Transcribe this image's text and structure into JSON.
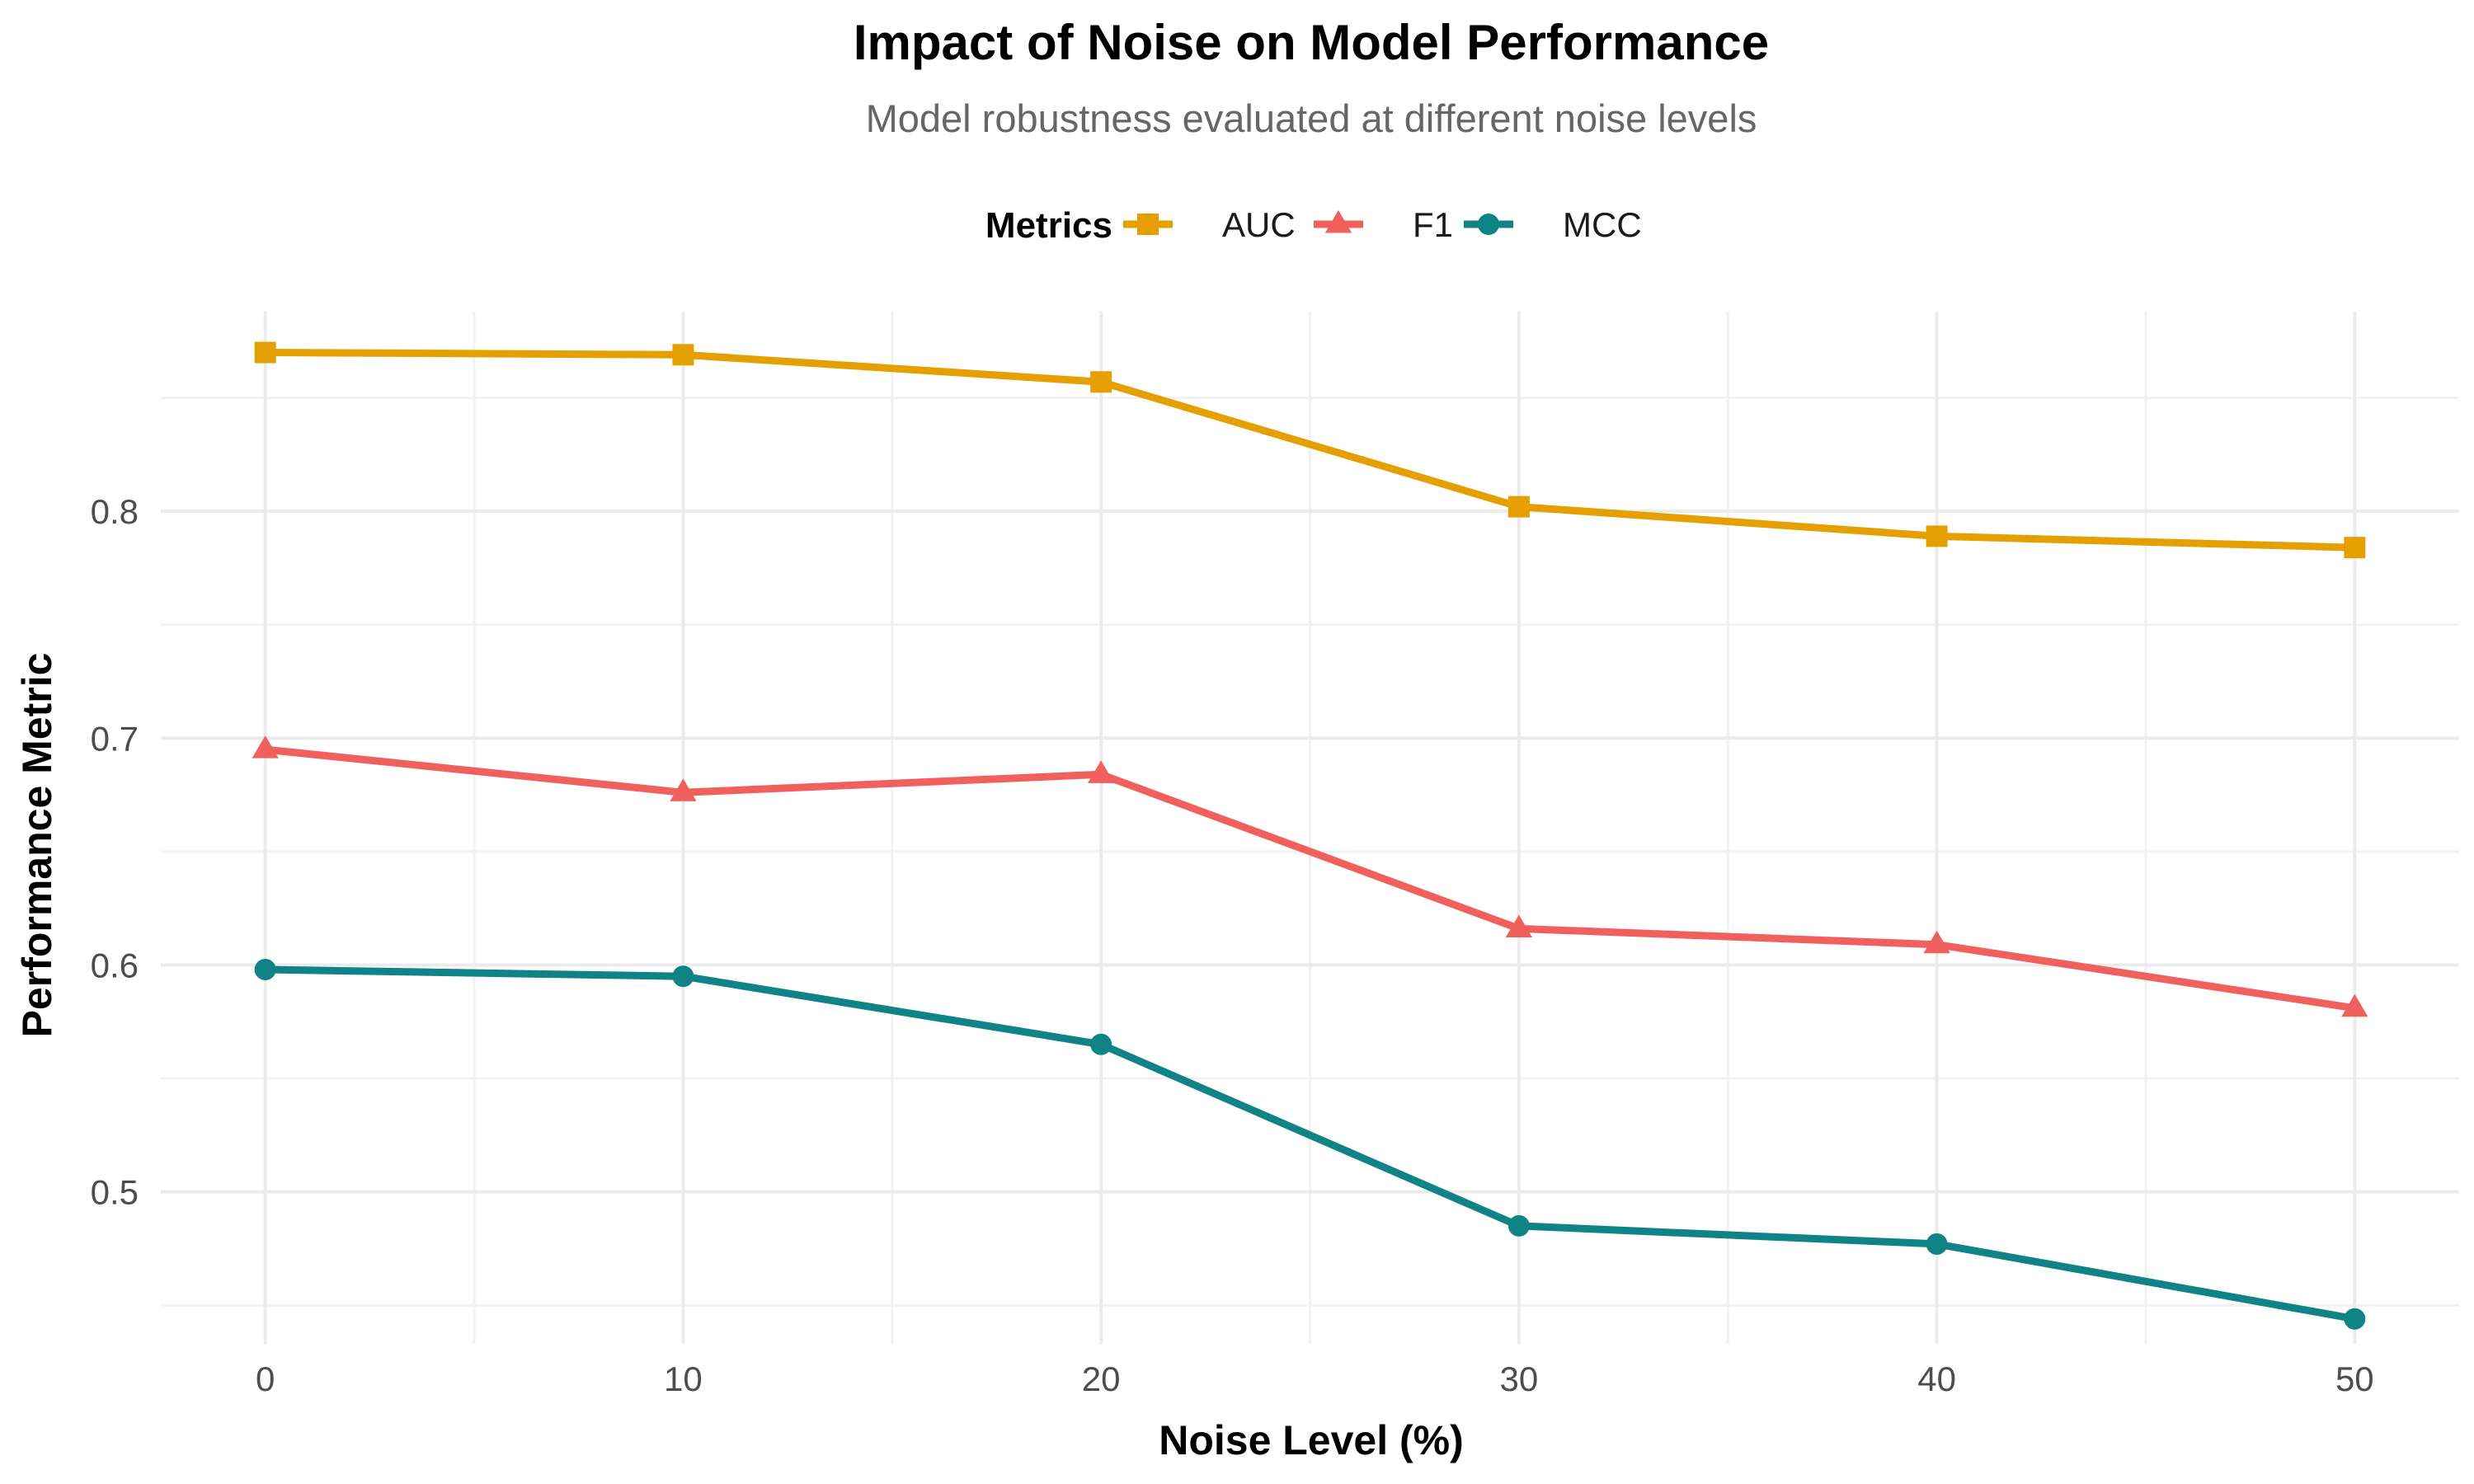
{
  "chart_data": {
    "type": "line",
    "title": "Impact of Noise on Model Performance",
    "subtitle": "Model robustness evaluated at different noise levels",
    "xlabel": "Noise Level (%)",
    "ylabel": "Performance Metric",
    "x": [
      0,
      10,
      20,
      30,
      40,
      50
    ],
    "x_ticks": [
      "0",
      "10",
      "20",
      "30",
      "40",
      "50"
    ],
    "y_ticks": [
      "0.5",
      "0.6",
      "0.7",
      "0.8"
    ],
    "xlim": [
      -2.5,
      52.5
    ],
    "ylim": [
      0.433,
      0.888
    ],
    "grid": true,
    "legend": {
      "title": "Metrics",
      "position": "top"
    },
    "series": [
      {
        "name": "AUC",
        "color": "#E69F00",
        "marker": "square",
        "values": [
          0.87,
          0.869,
          0.857,
          0.802,
          0.789,
          0.784
        ]
      },
      {
        "name": "F1",
        "color": "#F0605D",
        "marker": "triangle",
        "values": [
          0.695,
          0.676,
          0.684,
          0.616,
          0.609,
          0.581
        ]
      },
      {
        "name": "MCC",
        "color": "#0F8385",
        "marker": "circle",
        "values": [
          0.598,
          0.595,
          0.565,
          0.485,
          0.477,
          0.444
        ]
      }
    ]
  }
}
